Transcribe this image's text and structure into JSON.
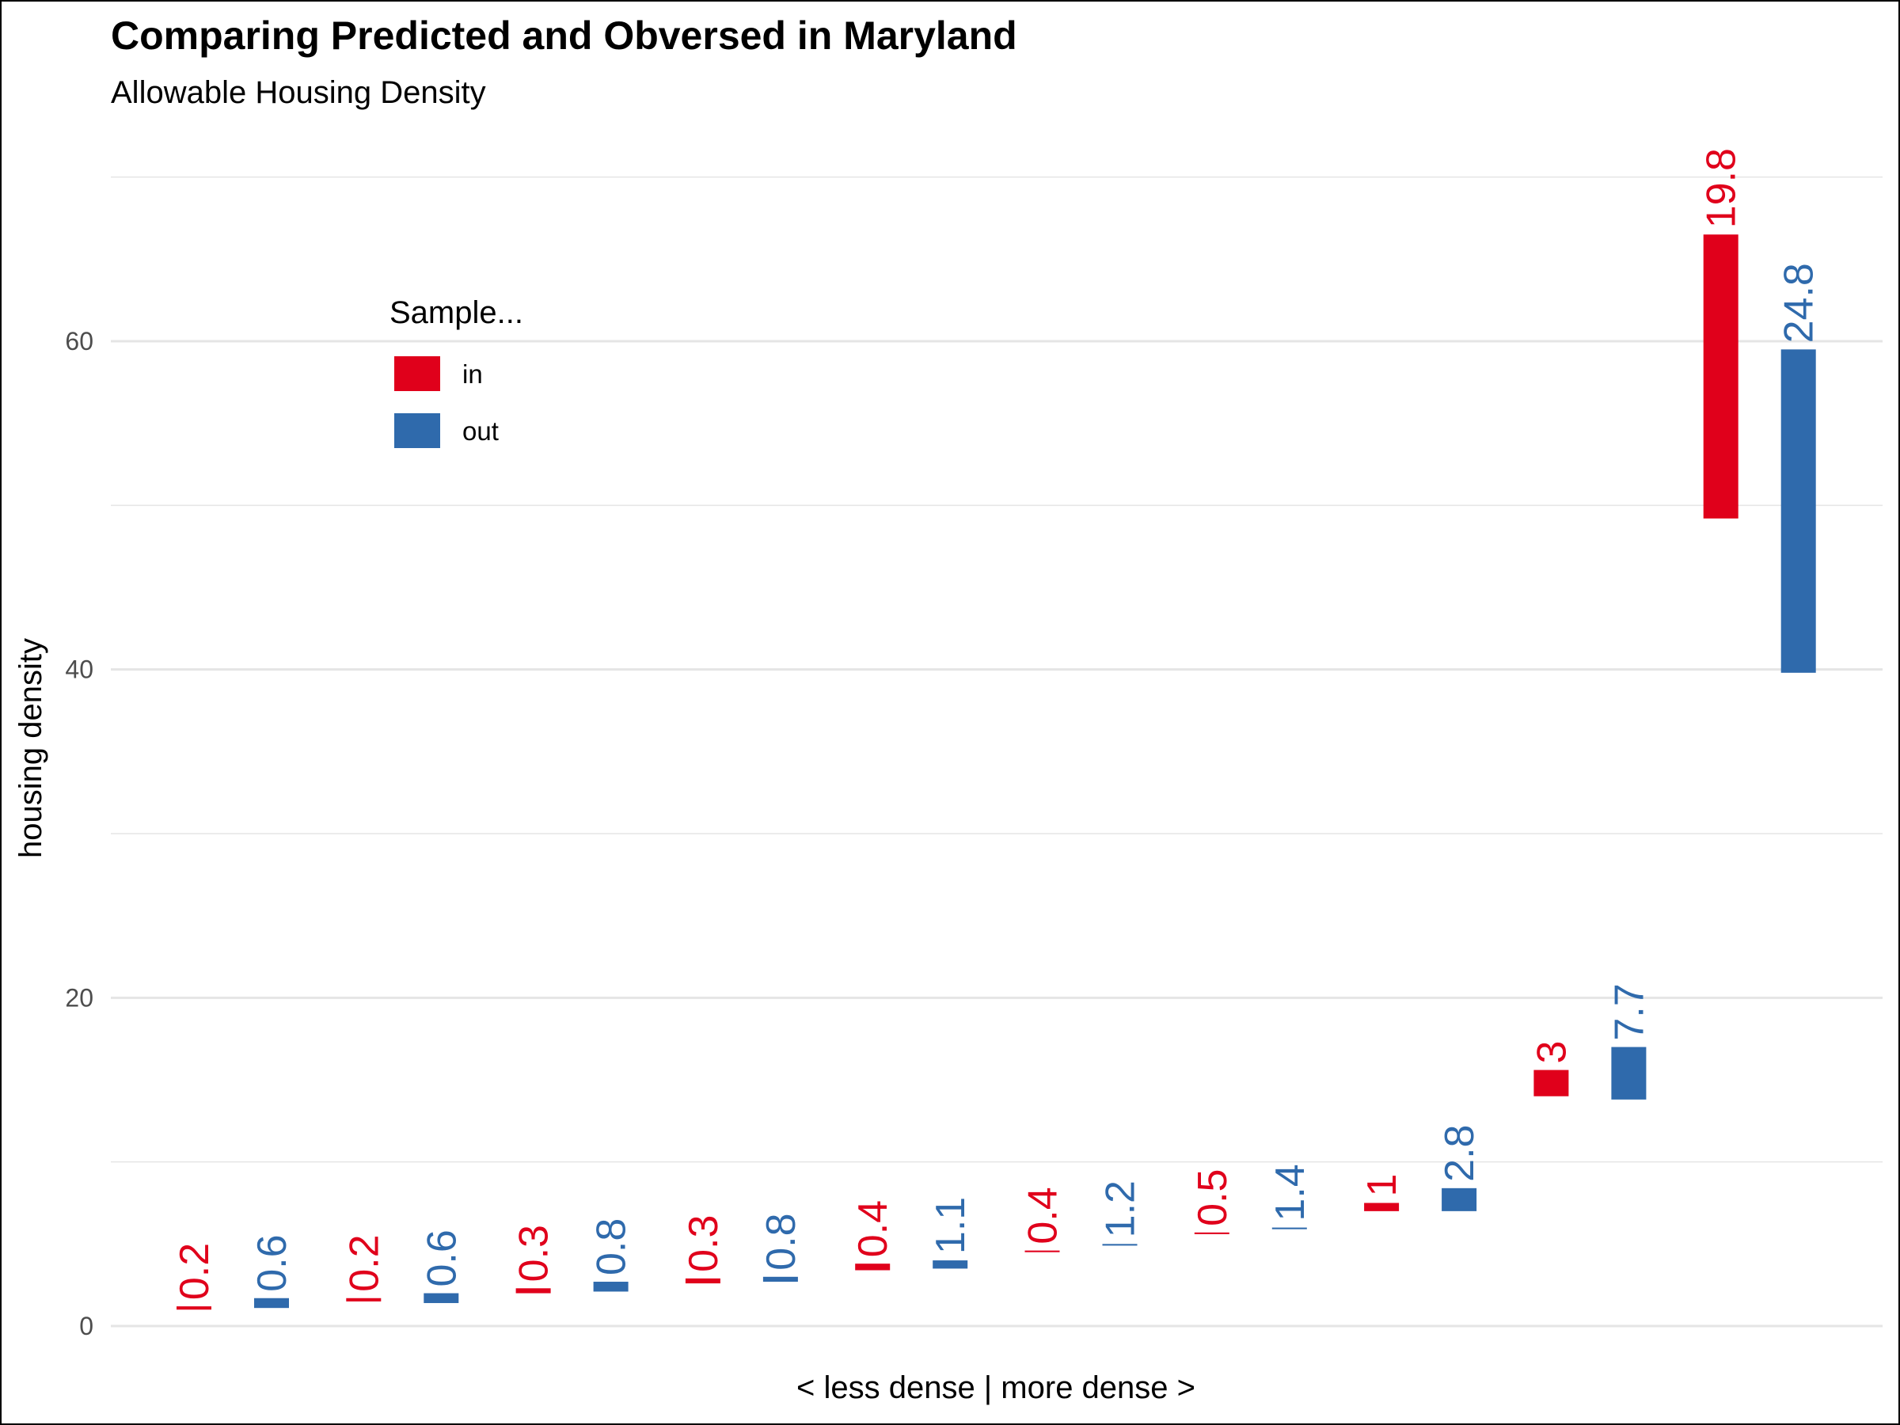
{
  "chart_data": {
    "type": "bar",
    "title": "Comparing Predicted and Obversed in Maryland",
    "subtitle": "Allowable Housing Density",
    "xlabel": "< less dense | more dense >",
    "ylabel": "housing density",
    "ylim": [
      -3,
      70
    ],
    "yticks": [
      0,
      20,
      40,
      60
    ],
    "grid": true,
    "legend": {
      "title": "Sample...",
      "position": "top-left",
      "entries": [
        {
          "label": "in",
          "color": "#e0001b"
        },
        {
          "label": "out",
          "color": "#2f6aac"
        }
      ]
    },
    "series": [
      {
        "name": "in",
        "color": "#e0001b",
        "segments": [
          {
            "low": 1.0,
            "high": 1.2,
            "label": "0.2"
          },
          {
            "low": 1.5,
            "high": 1.7,
            "label": "0.2"
          },
          {
            "low": 2.0,
            "high": 2.3,
            "label": "0.3"
          },
          {
            "low": 2.6,
            "high": 2.9,
            "label": "0.3"
          },
          {
            "low": 3.4,
            "high": 3.8,
            "label": "0.4"
          },
          {
            "low": 4.5,
            "high": 4.6,
            "label": "0.4"
          },
          {
            "low": 5.6,
            "high": 5.7,
            "label": "0.5"
          },
          {
            "low": 7.0,
            "high": 7.5,
            "label": "1"
          },
          {
            "low": 14.0,
            "high": 15.6,
            "label": "3"
          },
          {
            "low": 49.2,
            "high": 66.5,
            "label": "19.8"
          }
        ]
      },
      {
        "name": "out",
        "color": "#2f6aac",
        "segments": [
          {
            "low": 1.1,
            "high": 1.7,
            "label": "0.6"
          },
          {
            "low": 1.4,
            "high": 2.0,
            "label": "0.6"
          },
          {
            "low": 2.1,
            "high": 2.7,
            "label": "0.8"
          },
          {
            "low": 2.7,
            "high": 3.0,
            "label": "0.8"
          },
          {
            "low": 3.5,
            "high": 4.0,
            "label": "1.1"
          },
          {
            "low": 4.9,
            "high": 5.0,
            "label": "1.2"
          },
          {
            "low": 5.9,
            "high": 6.0,
            "label": "1.4"
          },
          {
            "low": 7.0,
            "high": 8.4,
            "label": "2.8"
          },
          {
            "low": 13.8,
            "high": 17.0,
            "label": "7.7"
          },
          {
            "low": 39.8,
            "high": 59.5,
            "label": "24.8"
          }
        ]
      }
    ]
  }
}
